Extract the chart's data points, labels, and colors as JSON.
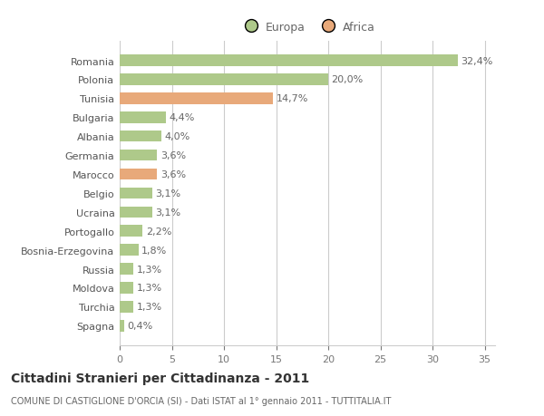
{
  "categories": [
    "Romania",
    "Polonia",
    "Tunisia",
    "Bulgaria",
    "Albania",
    "Germania",
    "Marocco",
    "Belgio",
    "Ucraina",
    "Portogallo",
    "Bosnia-Erzegovina",
    "Russia",
    "Moldova",
    "Turchia",
    "Spagna"
  ],
  "values": [
    32.4,
    20.0,
    14.7,
    4.4,
    4.0,
    3.6,
    3.6,
    3.1,
    3.1,
    2.2,
    1.8,
    1.3,
    1.3,
    1.3,
    0.4
  ],
  "labels": [
    "32,4%",
    "20,0%",
    "14,7%",
    "4,4%",
    "4,0%",
    "3,6%",
    "3,6%",
    "3,1%",
    "3,1%",
    "2,2%",
    "1,8%",
    "1,3%",
    "1,3%",
    "1,3%",
    "0,4%"
  ],
  "continents": [
    "Europa",
    "Europa",
    "Africa",
    "Europa",
    "Europa",
    "Europa",
    "Africa",
    "Europa",
    "Europa",
    "Europa",
    "Europa",
    "Europa",
    "Europa",
    "Europa",
    "Europa"
  ],
  "color_europa": "#aec98a",
  "color_africa": "#e8a97a",
  "bar_height": 0.6,
  "xlim": [
    0,
    36
  ],
  "xticks": [
    0,
    5,
    10,
    15,
    20,
    25,
    30,
    35
  ],
  "title_main": "Cittadini Stranieri per Cittadinanza - 2011",
  "title_sub": "COMUNE DI CASTIGLIONE D'ORCIA (SI) - Dati ISTAT al 1° gennaio 2011 - TUTTITALIA.IT",
  "legend_europa": "Europa",
  "legend_africa": "Africa",
  "bg_color": "#ffffff",
  "grid_color": "#cccccc",
  "label_fontsize": 8,
  "tick_fontsize": 8,
  "title_fontsize": 10,
  "sub_fontsize": 7
}
